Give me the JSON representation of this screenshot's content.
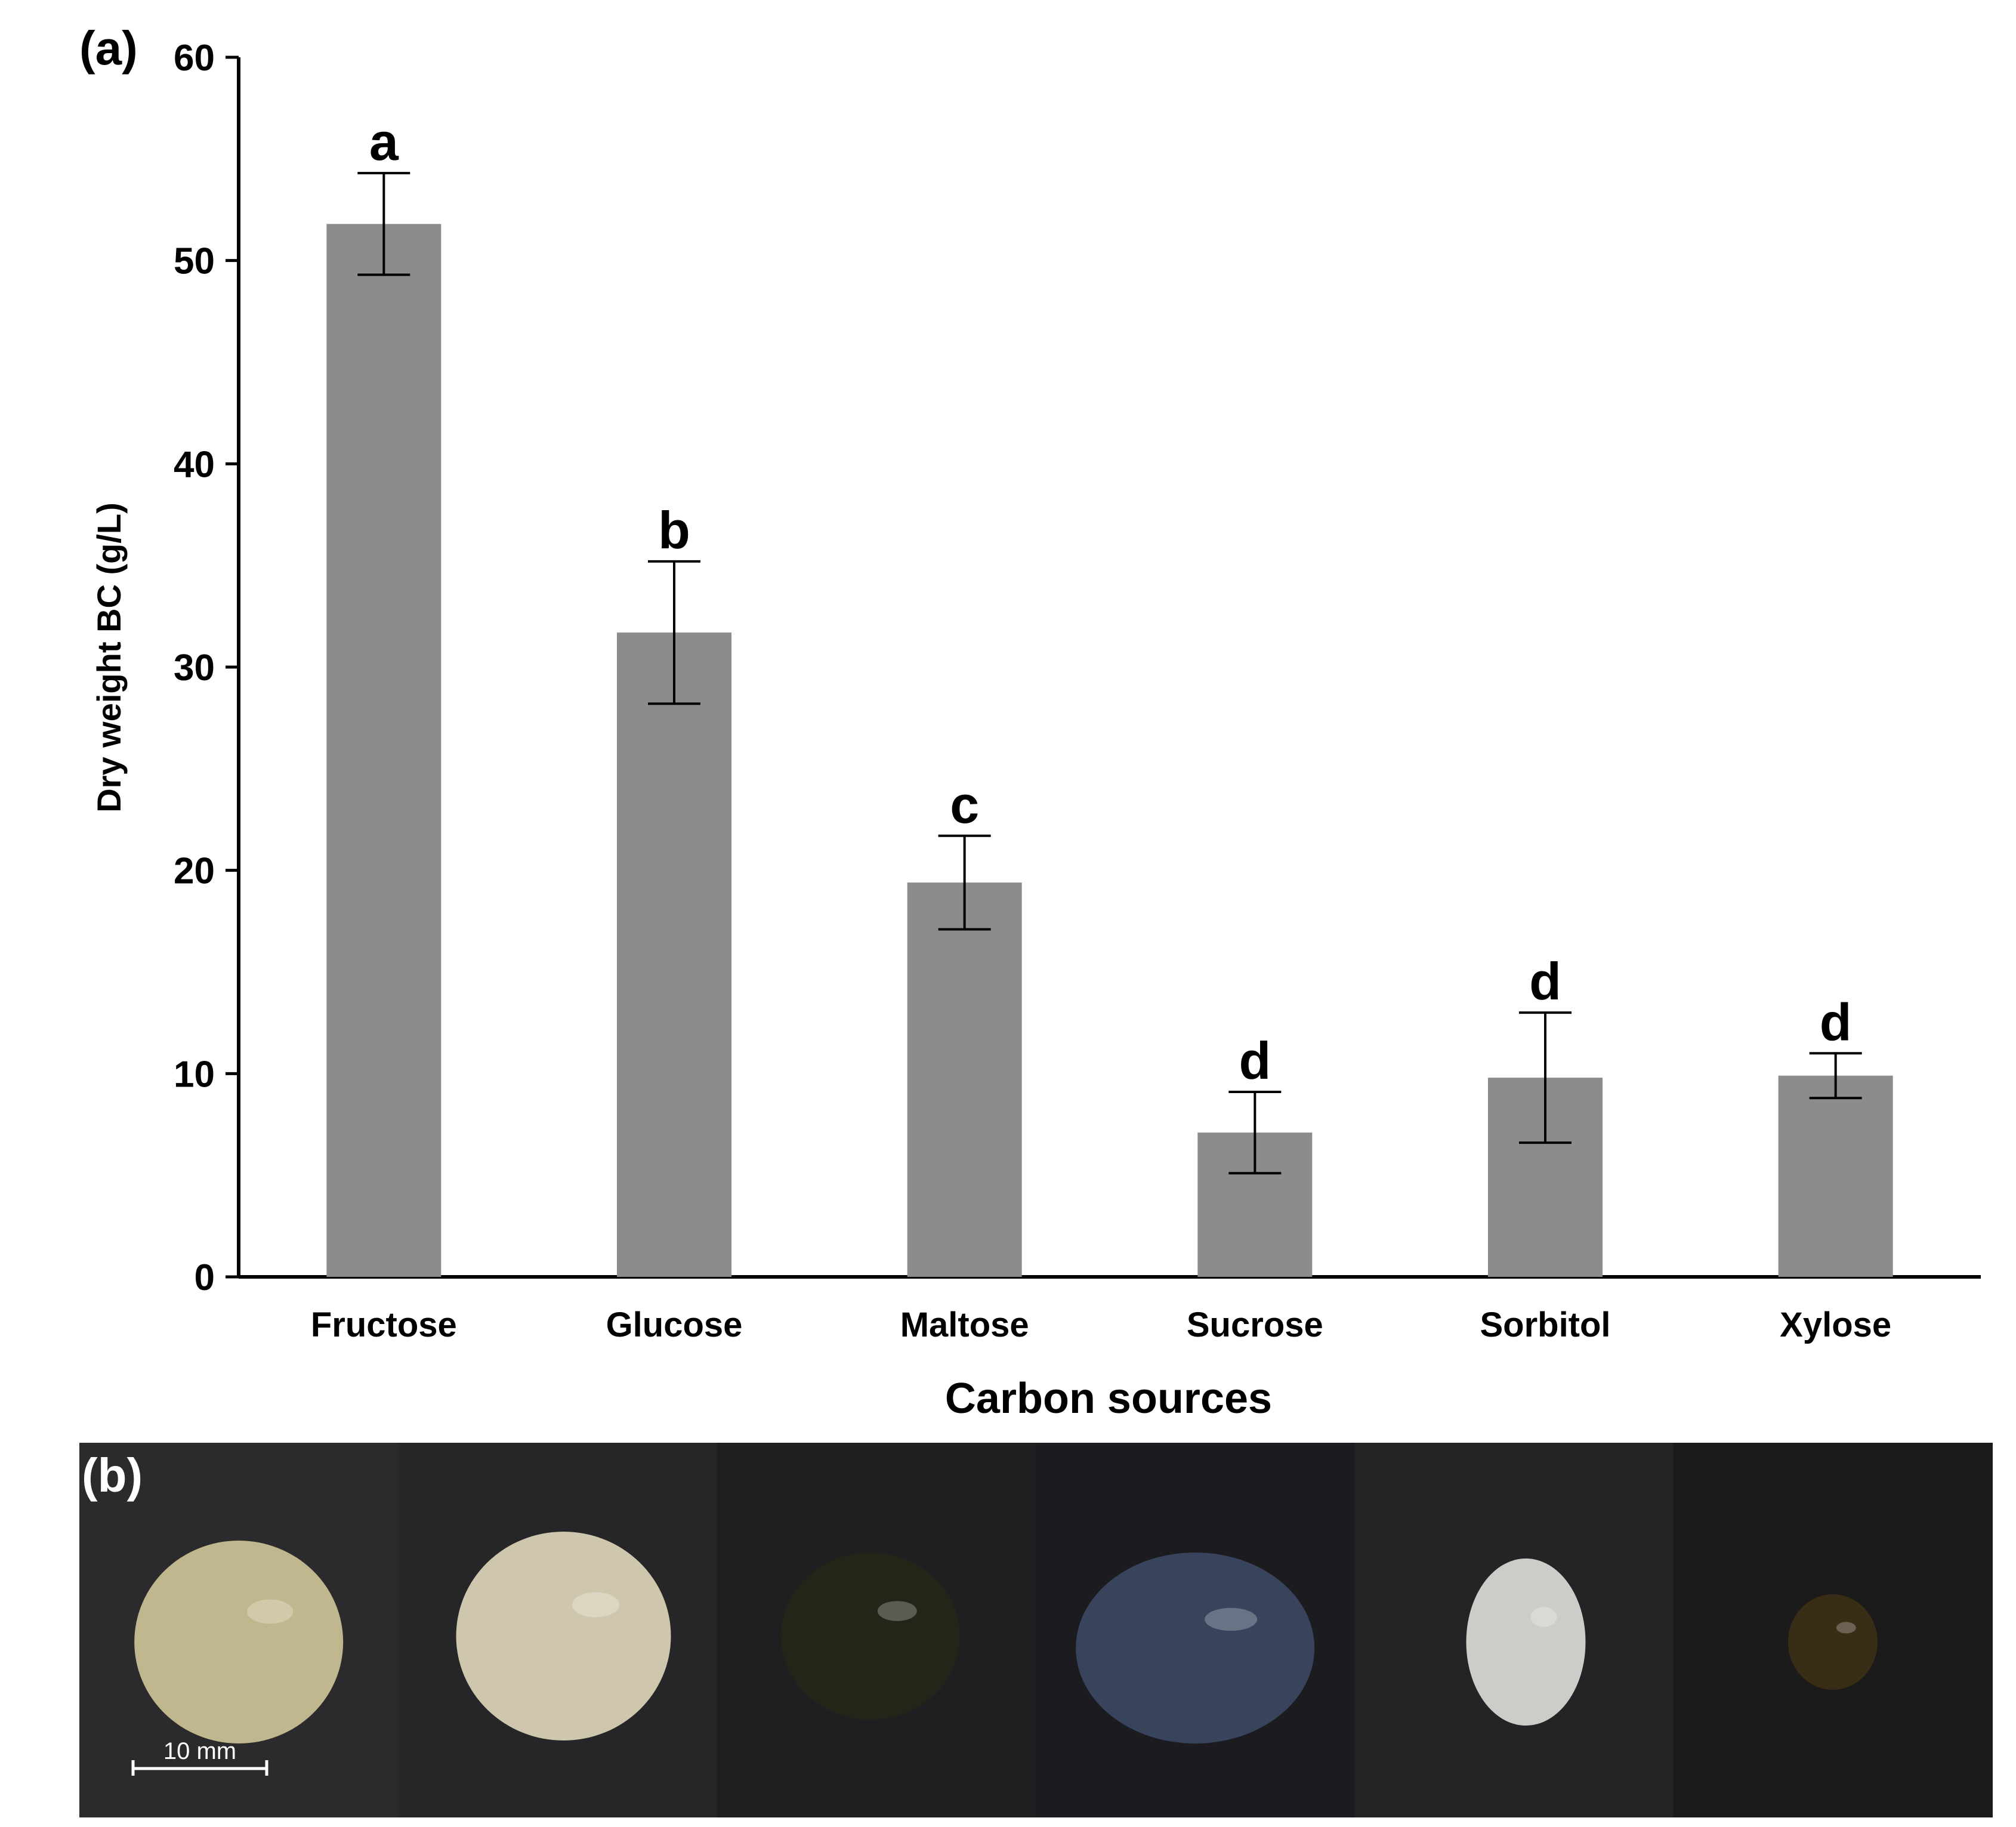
{
  "panel_labels": {
    "a": "(a)",
    "b": "(b)"
  },
  "chart_data": {
    "type": "bar",
    "title": "",
    "xlabel": "Carbon sources",
    "ylabel": "Dry weight BC (g/L)",
    "ylim": [
      0,
      60
    ],
    "yticks": [
      0,
      10,
      20,
      30,
      40,
      50,
      60
    ],
    "grid": false,
    "categories": [
      "Fructose",
      "Glucose",
      "Maltose",
      "Sucrose",
      "Sorbitol",
      "Xylose"
    ],
    "values": [
      51.8,
      31.7,
      19.4,
      7.1,
      9.8,
      9.9
    ],
    "errors": [
      2.5,
      3.5,
      2.3,
      2.0,
      3.2,
      1.1
    ],
    "significance": [
      "a",
      "b",
      "c",
      "d",
      "d",
      "d"
    ],
    "bar_color": "#8c8c8c"
  },
  "photo_strip": {
    "scale_bar_label": "10 mm",
    "samples": [
      {
        "name": "Fructose",
        "appearance": "translucent yellowish disc",
        "color": "#c9bf93",
        "bg": "#2b2b2e"
      },
      {
        "name": "Glucose",
        "appearance": "opaque cream disc",
        "color": "#d8d0b4",
        "bg": "#262628"
      },
      {
        "name": "Maltose",
        "appearance": "dark brownish disc",
        "color": "#252519",
        "bg": "#1f1f22"
      },
      {
        "name": "Sucrose",
        "appearance": "clear transparent film",
        "color": "#3a4660",
        "bg": "#1c1c20"
      },
      {
        "name": "Sorbitol",
        "appearance": "small white pellicle",
        "color": "#d6d6d2",
        "bg": "#242427"
      },
      {
        "name": "Xylose",
        "appearance": "small dark brown pellicle",
        "color": "#3b2e16",
        "bg": "#1b1b1c"
      }
    ]
  }
}
